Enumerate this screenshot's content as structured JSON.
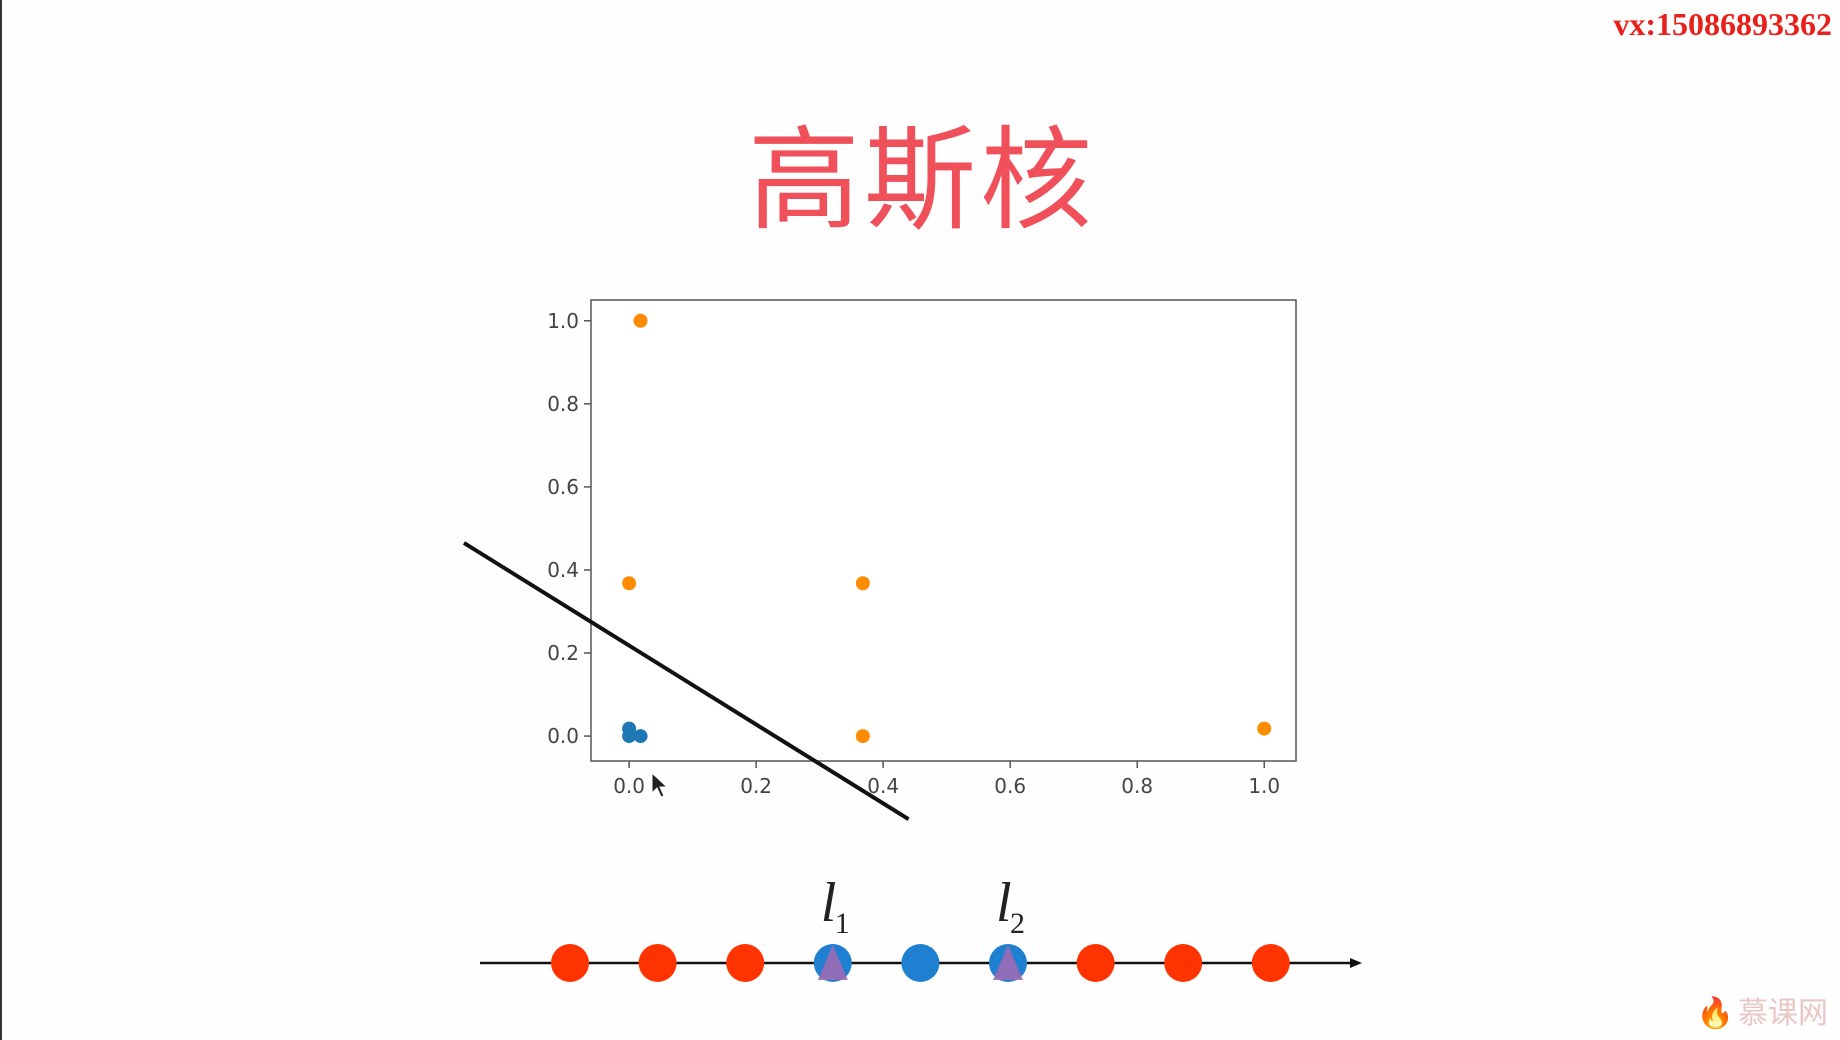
{
  "header": {
    "contact": "vx:15086893362"
  },
  "slide": {
    "title": "高斯核"
  },
  "chart_data": {
    "type": "scatter",
    "xlim": [
      -0.06,
      1.05
    ],
    "ylim": [
      -0.06,
      1.05
    ],
    "x_ticks": [
      "0.0",
      "0.2",
      "0.4",
      "0.6",
      "0.8",
      "1.0"
    ],
    "y_ticks": [
      "0.0",
      "0.2",
      "0.4",
      "0.6",
      "0.8",
      "1.0"
    ],
    "x_tick_values": [
      0.0,
      0.2,
      0.4,
      0.6,
      0.8,
      1.0
    ],
    "y_tick_values": [
      0.0,
      0.2,
      0.4,
      0.6,
      0.8,
      1.0
    ],
    "grid": false,
    "series": [
      {
        "color": "#1f77b4",
        "points": [
          [
            0.0,
            0.018
          ],
          [
            0.0,
            0.0
          ],
          [
            0.018,
            0.0
          ]
        ]
      },
      {
        "color": "#ff8c00",
        "points": [
          [
            0.018,
            1.0
          ],
          [
            0.0,
            0.368
          ],
          [
            0.368,
            0.368
          ],
          [
            0.368,
            0.0
          ],
          [
            1.0,
            0.018
          ]
        ]
      }
    ],
    "decision_line": {
      "color": "#111111",
      "from": [
        -0.26,
        0.465
      ],
      "to": [
        0.44,
        -0.2
      ]
    }
  },
  "number_line": {
    "axis_color": "#111111",
    "points": [
      {
        "color": "#ff3300",
        "landmark": false
      },
      {
        "color": "#ff3300",
        "landmark": false
      },
      {
        "color": "#ff3300",
        "landmark": false
      },
      {
        "color": "#1f7fd0",
        "landmark": true
      },
      {
        "color": "#1f7fd0",
        "landmark": false
      },
      {
        "color": "#1f7fd0",
        "landmark": true
      },
      {
        "color": "#ff3300",
        "landmark": false
      },
      {
        "color": "#ff3300",
        "landmark": false
      },
      {
        "color": "#ff3300",
        "landmark": false
      }
    ],
    "landmark_marker_color": "#9b6bb4",
    "landmarks": [
      {
        "label": "l",
        "subscript": "1"
      },
      {
        "label": "l",
        "subscript": "2"
      }
    ]
  },
  "watermark": {
    "text": "慕课网",
    "icon": "flame-icon"
  }
}
